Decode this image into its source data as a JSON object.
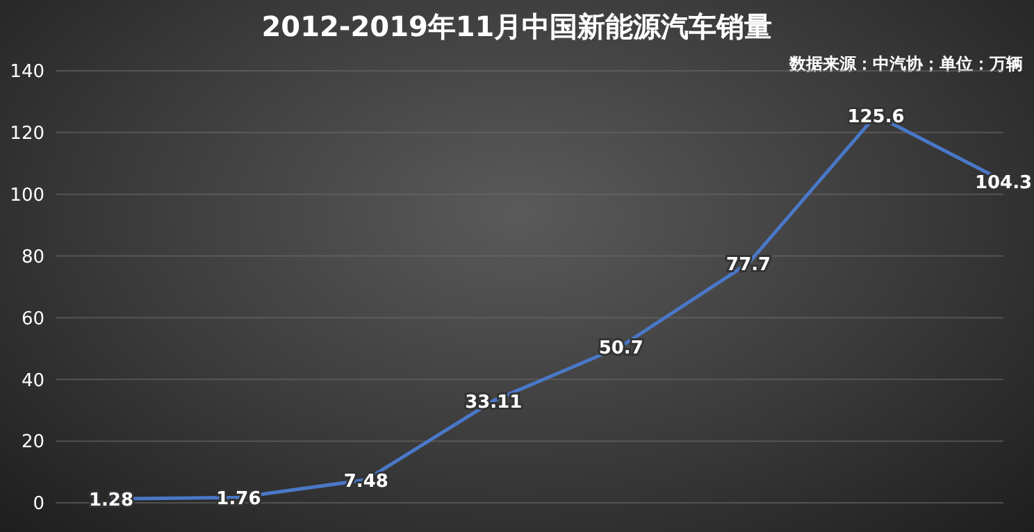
{
  "chart_data": {
    "type": "line",
    "title": "2012-2019年11月中国新能源汽车销量",
    "annotations": [
      "数据来源：中汽协；单位：万辆"
    ],
    "categories": [
      null,
      null,
      null,
      null,
      null,
      null,
      null,
      null
    ],
    "series": [
      {
        "color": "#4a78c8",
        "values": [
          1.28,
          1.76,
          7.48,
          33.11,
          50.7,
          77.7,
          125.6,
          104.3
        ]
      }
    ],
    "ylim": [
      0,
      140
    ],
    "yticks": [
      0,
      20,
      40,
      60,
      80,
      100,
      120,
      140
    ],
    "grid": "y",
    "marker": "none",
    "line_style": "solid",
    "data_labels": true,
    "legend": false
  }
}
